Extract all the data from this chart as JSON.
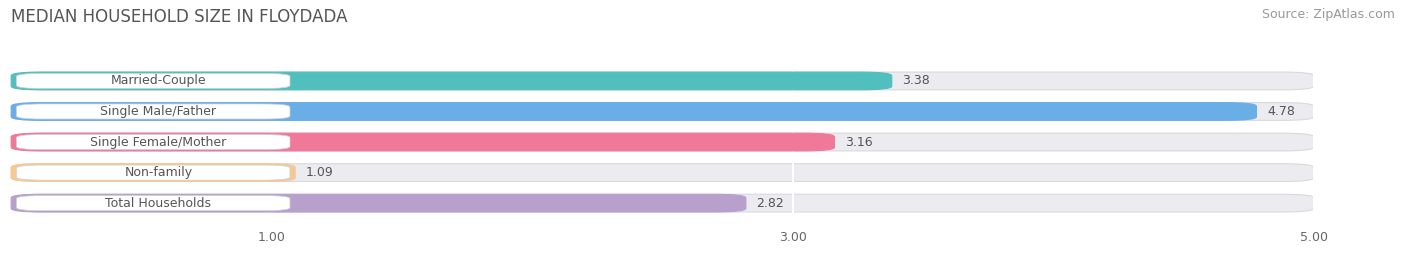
{
  "title": "MEDIAN HOUSEHOLD SIZE IN FLOYDADA",
  "source": "Source: ZipAtlas.com",
  "categories": [
    "Married-Couple",
    "Single Male/Father",
    "Single Female/Mother",
    "Non-family",
    "Total Households"
  ],
  "values": [
    3.38,
    4.78,
    3.16,
    1.09,
    2.82
  ],
  "bar_colors": [
    "#52bfbf",
    "#6aaee8",
    "#f07898",
    "#f5c990",
    "#b8a0cc"
  ],
  "bar_edge_colors": [
    "#52bfbf",
    "#6aaee8",
    "#f07898",
    "#f5c990",
    "#b8a0cc"
  ],
  "xlim_min": 0,
  "xlim_max": 5.3,
  "data_max": 5.0,
  "xticks": [
    1.0,
    3.0,
    5.0
  ],
  "xtick_labels": [
    "1.00",
    "3.00",
    "5.00"
  ],
  "background_color": "#ffffff",
  "bar_bg_color": "#ebebf0",
  "title_fontsize": 12,
  "label_fontsize": 9,
  "value_fontsize": 9,
  "tick_fontsize": 9,
  "source_fontsize": 9,
  "bar_height": 0.58,
  "grid_color": "#ffffff",
  "grid_linewidth": 1.5,
  "label_box_color": "#ffffff",
  "bar_gap": 0.42
}
